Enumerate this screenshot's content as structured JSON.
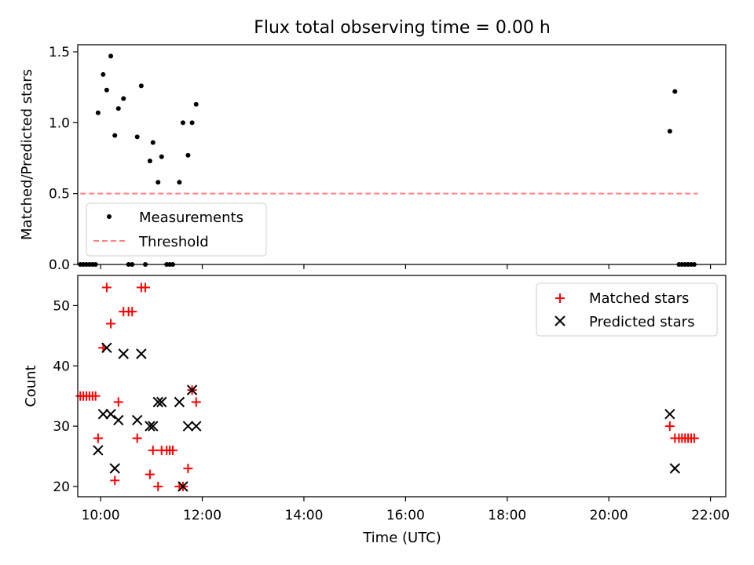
{
  "title": "Flux total observing time = 0.00 h",
  "colors": {
    "measurement": "#000000",
    "threshold": "#ff7f7f",
    "matched": "#ff0000",
    "predicted": "#000000",
    "axis": "#000000",
    "legend_border": "#cccccc"
  },
  "chart_data": [
    {
      "type": "scatter",
      "panel": "top",
      "xlabel": "",
      "ylabel": "Matched/Predicted stars",
      "xlim": [
        9.55,
        22.3
      ],
      "ylim": [
        0,
        1.55
      ],
      "yticks": [
        0.0,
        0.5,
        1.0,
        1.5
      ],
      "ytick_labels": [
        "0.0",
        "0.5",
        "1.0",
        "1.5"
      ],
      "grid": false,
      "legend_position": "lower-left",
      "series": [
        {
          "name": "Measurements",
          "marker": "dot",
          "points": [
            [
              9.95,
              1.07
            ],
            [
              10.05,
              1.34
            ],
            [
              10.12,
              1.23
            ],
            [
              10.2,
              1.47
            ],
            [
              10.28,
              0.91
            ],
            [
              10.35,
              1.1
            ],
            [
              10.45,
              1.17
            ],
            [
              10.72,
              0.9
            ],
            [
              10.8,
              1.26
            ],
            [
              10.97,
              0.73
            ],
            [
              11.03,
              0.86
            ],
            [
              11.13,
              0.58
            ],
            [
              11.2,
              0.76
            ],
            [
              11.55,
              0.58
            ],
            [
              11.62,
              1.0
            ],
            [
              11.72,
              0.77
            ],
            [
              11.8,
              1.0
            ],
            [
              11.88,
              1.13
            ],
            [
              21.2,
              0.94
            ],
            [
              21.3,
              1.22
            ],
            [
              9.6,
              0.0
            ],
            [
              9.66,
              0.0
            ],
            [
              9.72,
              0.0
            ],
            [
              9.78,
              0.0
            ],
            [
              9.84,
              0.0
            ],
            [
              9.9,
              0.0
            ],
            [
              10.55,
              0.0
            ],
            [
              10.62,
              0.0
            ],
            [
              10.88,
              0.0
            ],
            [
              11.3,
              0.0
            ],
            [
              11.36,
              0.0
            ],
            [
              11.42,
              0.0
            ],
            [
              21.38,
              0.0
            ],
            [
              21.44,
              0.0
            ],
            [
              21.5,
              0.0
            ],
            [
              21.56,
              0.0
            ],
            [
              21.62,
              0.0
            ],
            [
              21.68,
              0.0
            ]
          ]
        },
        {
          "name": "Threshold",
          "marker": "dashed-line",
          "points": [
            [
              9.6,
              0.5
            ],
            [
              21.75,
              0.5
            ]
          ]
        }
      ]
    },
    {
      "type": "scatter",
      "panel": "bottom",
      "xlabel": "Time (UTC)",
      "ylabel": "Count",
      "xlim": [
        9.55,
        22.3
      ],
      "ylim": [
        18.3,
        55
      ],
      "yticks": [
        20,
        30,
        40,
        50
      ],
      "ytick_labels": [
        "20",
        "30",
        "40",
        "50"
      ],
      "xticks": [
        10,
        12,
        14,
        16,
        18,
        20,
        22
      ],
      "xtick_labels": [
        "10:00",
        "12:00",
        "14:00",
        "16:00",
        "18:00",
        "20:00",
        "22:00"
      ],
      "grid": false,
      "legend_position": "upper-right",
      "series": [
        {
          "name": "Matched stars",
          "marker": "plus",
          "points": [
            [
              9.6,
              35
            ],
            [
              9.66,
              35
            ],
            [
              9.72,
              35
            ],
            [
              9.78,
              35
            ],
            [
              9.84,
              35
            ],
            [
              9.9,
              35
            ],
            [
              9.95,
              28
            ],
            [
              10.05,
              43
            ],
            [
              10.12,
              53
            ],
            [
              10.2,
              47
            ],
            [
              10.28,
              21
            ],
            [
              10.35,
              34
            ],
            [
              10.45,
              49
            ],
            [
              10.55,
              49
            ],
            [
              10.62,
              49
            ],
            [
              10.72,
              28
            ],
            [
              10.8,
              53
            ],
            [
              10.88,
              53
            ],
            [
              10.97,
              22
            ],
            [
              11.03,
              26
            ],
            [
              11.13,
              20
            ],
            [
              11.2,
              26
            ],
            [
              11.3,
              26
            ],
            [
              11.36,
              26
            ],
            [
              11.42,
              26
            ],
            [
              11.55,
              20
            ],
            [
              11.62,
              20
            ],
            [
              11.72,
              23
            ],
            [
              11.8,
              36
            ],
            [
              11.88,
              34
            ],
            [
              21.2,
              30
            ],
            [
              21.3,
              28
            ],
            [
              21.38,
              28
            ],
            [
              21.44,
              28
            ],
            [
              21.5,
              28
            ],
            [
              21.56,
              28
            ],
            [
              21.62,
              28
            ],
            [
              21.68,
              28
            ]
          ]
        },
        {
          "name": "Predicted stars",
          "marker": "x",
          "points": [
            [
              9.95,
              26
            ],
            [
              10.05,
              32
            ],
            [
              10.12,
              43
            ],
            [
              10.2,
              32
            ],
            [
              10.28,
              23
            ],
            [
              10.35,
              31
            ],
            [
              10.45,
              42
            ],
            [
              10.72,
              31
            ],
            [
              10.8,
              42
            ],
            [
              10.97,
              30
            ],
            [
              11.03,
              30
            ],
            [
              11.13,
              34
            ],
            [
              11.2,
              34
            ],
            [
              11.55,
              34
            ],
            [
              11.62,
              20
            ],
            [
              11.72,
              30
            ],
            [
              11.8,
              36
            ],
            [
              11.88,
              30
            ],
            [
              21.2,
              32
            ],
            [
              21.3,
              23
            ]
          ]
        }
      ]
    }
  ]
}
